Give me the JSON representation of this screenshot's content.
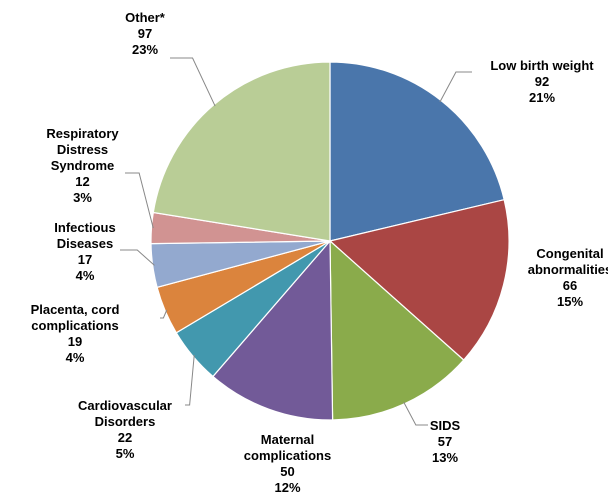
{
  "chart_data": {
    "type": "pie",
    "categories": [
      "Low birth weight",
      "Congenital abnormalities",
      "SIDS",
      "Maternal complications",
      "Cardiovascular Disorders",
      "Placenta, cord complications",
      "Infectious Diseases",
      "Respiratory Distress Syndrome",
      "Other*"
    ],
    "values": [
      92,
      66,
      57,
      50,
      22,
      19,
      17,
      12,
      97
    ],
    "percent_labels": [
      "21%",
      "15%",
      "13%",
      "12%",
      "5%",
      "4%",
      "4%",
      "3%",
      "23%"
    ],
    "colors": [
      "#4a76ab",
      "#aa4644",
      "#8aab4b",
      "#725a98",
      "#4298ae",
      "#db843d",
      "#93a9cf",
      "#d19392",
      "#b9cd96"
    ]
  }
}
